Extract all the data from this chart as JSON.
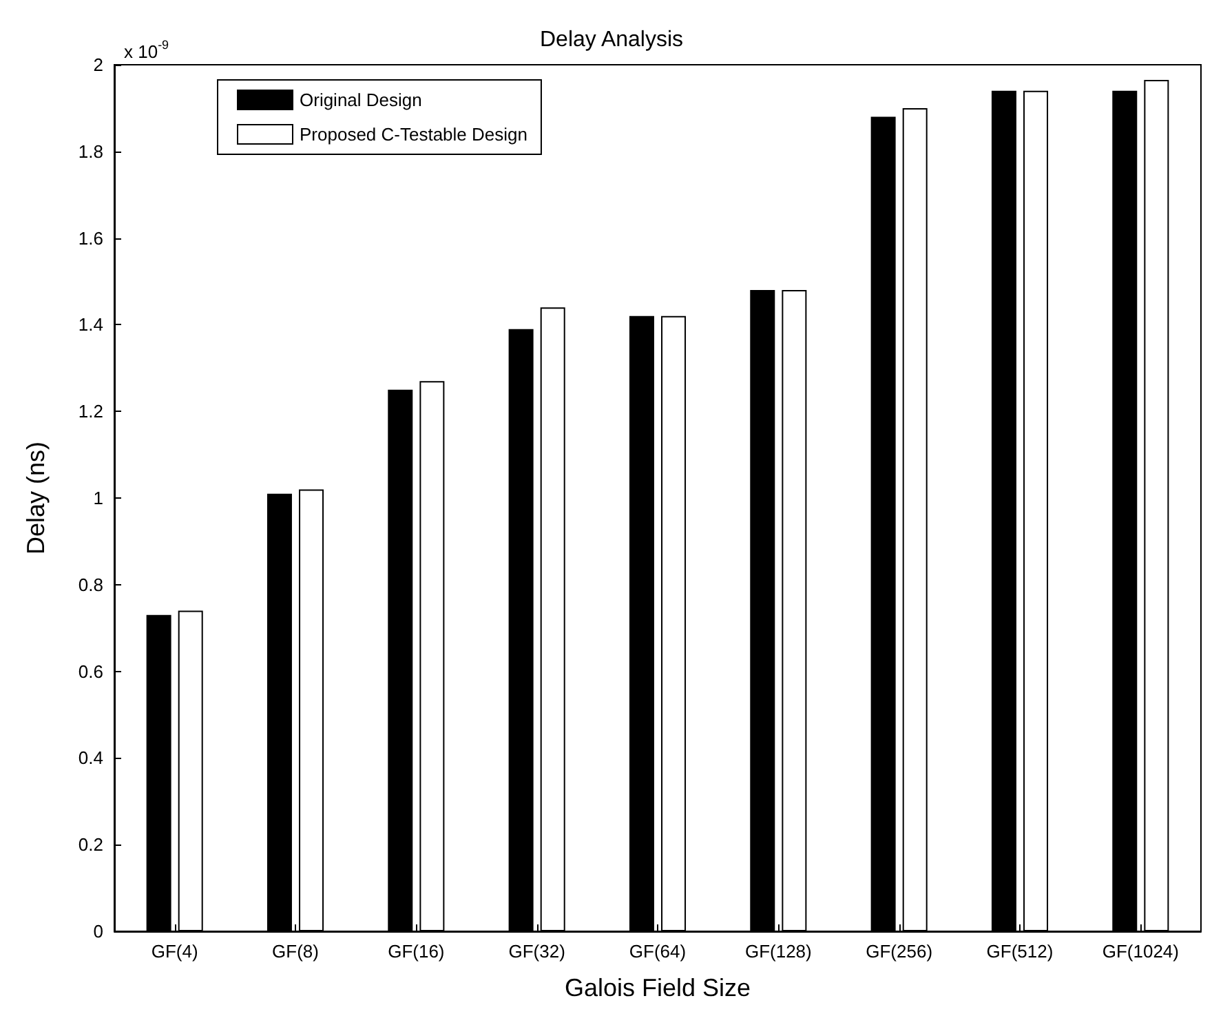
{
  "chart_data": {
    "type": "bar",
    "title": "Delay Analysis",
    "xlabel": "Galois Field Size",
    "ylabel": "Delay (ns)",
    "annotations": [
      "x 10$^{-9}$"
    ],
    "categories": [
      "GF(4)",
      "GF(8)",
      "GF(16)",
      "GF(32)",
      "GF(64)",
      "GF(128)",
      "GF(256)",
      "GF(512)",
      "GF(1024)"
    ],
    "series": [
      {
        "name": "Original Design",
        "color": "#000000",
        "values": [
          0.73,
          1.01,
          1.25,
          1.39,
          1.42,
          1.48,
          1.88,
          1.94,
          1.94
        ]
      },
      {
        "name": "Proposed C-Testable Design",
        "color": "#ffffff",
        "values": [
          0.74,
          1.02,
          1.27,
          1.44,
          1.42,
          1.48,
          1.9,
          1.94,
          1.965
        ]
      }
    ],
    "ylim": [
      0,
      2
    ],
    "yticks": [
      0,
      0.2,
      0.4,
      0.6,
      0.8,
      1,
      1.2,
      1.4,
      1.6,
      1.8,
      2
    ],
    "grid": false,
    "legend": "top left"
  }
}
